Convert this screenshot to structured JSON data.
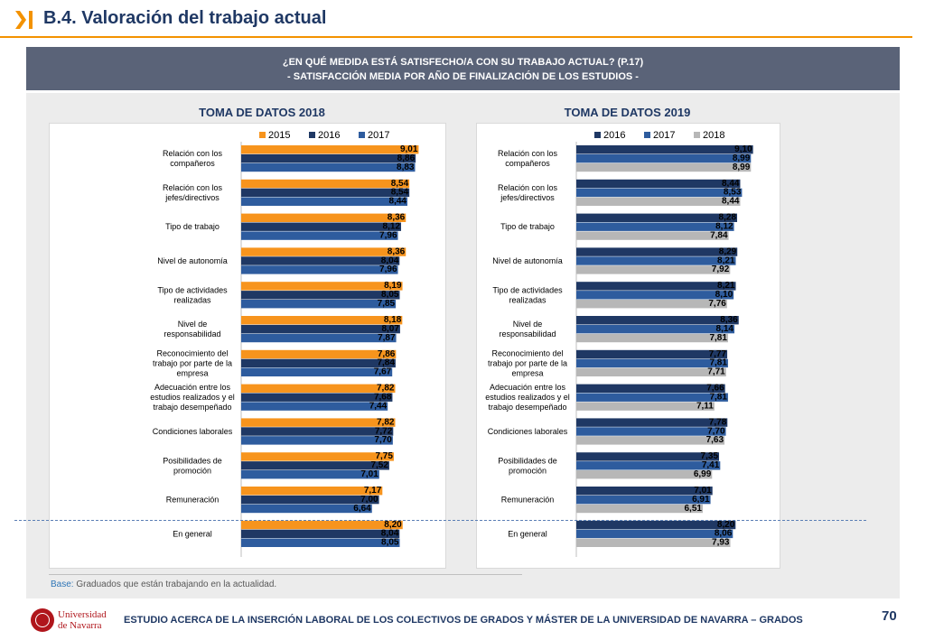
{
  "header": {
    "title": "B.4. Valoración del trabajo actual"
  },
  "banner": {
    "line1": "¿EN QUÉ MEDIDA ESTÁ SATISFECHO/A CON SU TRABAJO ACTUAL? (P.17)",
    "line2": "- SATISFACCIÓN MEDIA POR AÑO DE FINALIZACIÓN DE LOS ESTUDIOS -"
  },
  "footer": {
    "base_label": "Base:",
    "base_text": "Graduados que están trabajando en la actualidad.",
    "study_title": "ESTUDIO ACERCA DE LA INSERCIÓN LABORAL DE LOS COLECTIVOS DE GRADOS Y MÁSTER DE LA UNIVERSIDAD DE NAVARRA – GRADOS",
    "page_number": "70",
    "logo_line1": "Universidad",
    "logo_line2": "de Navarra"
  },
  "colors": {
    "orange": "#f7941d",
    "navy": "#1f3864",
    "blue": "#2e5c9e",
    "gray": "#b7b7b7"
  },
  "chart_data": [
    {
      "type": "bar",
      "orientation": "horizontal",
      "title": "TOMA DE DATOS 2018",
      "legend_position": "top",
      "categories": [
        [
          "Relación con los",
          "compañeros"
        ],
        [
          "Relación con los",
          "jefes/directivos"
        ],
        [
          "Tipo de trabajo"
        ],
        [
          "Nivel de autonomía"
        ],
        [
          "Tipo de actividades",
          "realizadas"
        ],
        [
          "Nivel de",
          "responsabilidad"
        ],
        [
          "Reconocimiento del",
          "trabajo por parte de la",
          "empresa"
        ],
        [
          "Adecuación entre los",
          "estudios realizados y el",
          "trabajo desempeñado"
        ],
        [
          "Condiciones laborales"
        ],
        [
          "Posibilidades de",
          "promoción"
        ],
        [
          "Remuneración"
        ],
        [
          "En general"
        ]
      ],
      "series": [
        {
          "name": "2015",
          "color": "#f7941d",
          "values": [
            9.01,
            8.54,
            8.36,
            8.36,
            8.19,
            8.18,
            7.86,
            7.82,
            7.82,
            7.75,
            7.17,
            8.2
          ]
        },
        {
          "name": "2016",
          "color": "#1f3864",
          "values": [
            8.86,
            8.54,
            8.12,
            8.04,
            8.05,
            8.07,
            7.84,
            7.68,
            7.72,
            7.52,
            7.0,
            8.04
          ]
        },
        {
          "name": "2017",
          "color": "#2e5c9e",
          "values": [
            8.83,
            8.44,
            7.96,
            7.96,
            7.85,
            7.87,
            7.67,
            7.44,
            7.7,
            7.01,
            6.64,
            8.05
          ]
        }
      ],
      "xlim": [
        0,
        10
      ]
    },
    {
      "type": "bar",
      "orientation": "horizontal",
      "title": "TOMA DE DATOS 2019",
      "legend_position": "top",
      "categories": [
        [
          "Relación con los",
          "compañeros"
        ],
        [
          "Relación con los",
          "jefes/directivos"
        ],
        [
          "Tipo de trabajo"
        ],
        [
          "Nivel de autonomía"
        ],
        [
          "Tipo de actividades",
          "realizadas"
        ],
        [
          "Nivel de",
          "responsabilidad"
        ],
        [
          "Reconocimiento del",
          "trabajo por parte de la",
          "empresa"
        ],
        [
          "Adecuación entre los",
          "estudios realizados y el",
          "trabajo desempeñado"
        ],
        [
          "Condiciones laborales"
        ],
        [
          "Posibilidades de",
          "promoción"
        ],
        [
          "Remuneración"
        ],
        [
          "En general"
        ]
      ],
      "series": [
        {
          "name": "2016",
          "color": "#1f3864",
          "values": [
            9.1,
            8.44,
            8.28,
            8.29,
            8.21,
            8.36,
            7.77,
            7.66,
            7.78,
            7.35,
            7.01,
            8.2
          ]
        },
        {
          "name": "2017",
          "color": "#2e5c9e",
          "values": [
            8.99,
            8.53,
            8.12,
            8.21,
            8.1,
            8.14,
            7.81,
            7.81,
            7.7,
            7.41,
            6.91,
            8.06
          ]
        },
        {
          "name": "2018",
          "color": "#b7b7b7",
          "values": [
            8.99,
            8.44,
            7.84,
            7.92,
            7.76,
            7.81,
            7.71,
            7.11,
            7.63,
            6.99,
            6.51,
            7.93
          ]
        }
      ],
      "xlim": [
        0,
        10
      ]
    }
  ]
}
